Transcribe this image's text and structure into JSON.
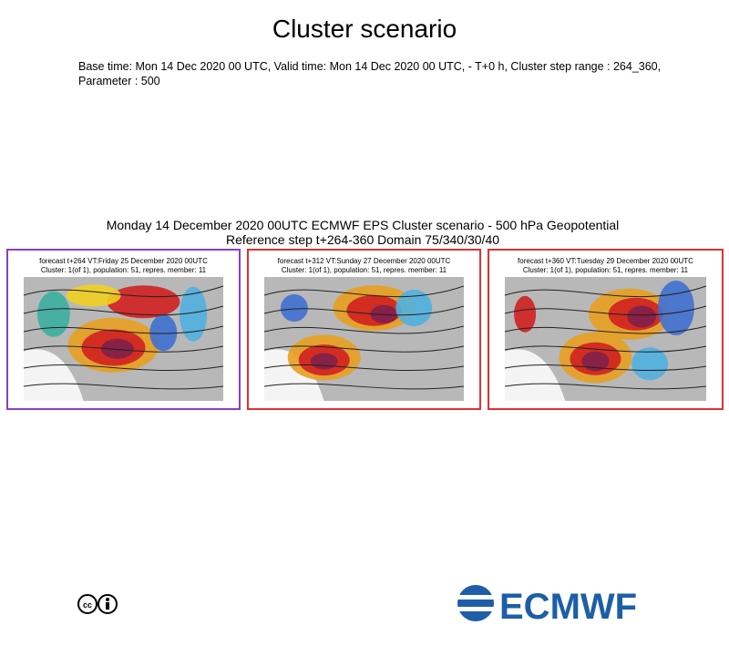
{
  "header": {
    "title": "Cluster scenario",
    "info_lines": [
      "Base time: Mon 14 Dec 2020 00 UTC, Valid time: Mon 14 Dec 2020 00 UTC, - T+0 h, Cluster step range : 264_360,",
      "Parameter : 500"
    ]
  },
  "figure": {
    "title_lines": [
      "Monday 14 December 2020 00UTC ECMWF EPS Cluster scenario - 500 hPa Geopotential",
      "Reference step t+264-360 Domain 75/340/30/40"
    ],
    "panels": [
      {
        "lines": [
          "forecast t+264 VT:Friday 25 December 2020 00UTC",
          "Cluster: 1(of 1), population: 51, repres. member: 11"
        ],
        "border_color": "#8a3fc0"
      },
      {
        "lines": [
          "forecast t+312 VT:Sunday 27 December 2020 00UTC",
          "Cluster: 1(of 1), population: 51, repres. member: 11"
        ],
        "border_color": "#e03030"
      },
      {
        "lines": [
          "forecast t+360 VT:Tuesday 29 December 2020 00UTC",
          "Cluster: 1(of 1), population: 51, repres. member: 11"
        ],
        "border_color": "#e03030"
      }
    ]
  },
  "footer": {
    "logo_text": "ECMWF"
  }
}
